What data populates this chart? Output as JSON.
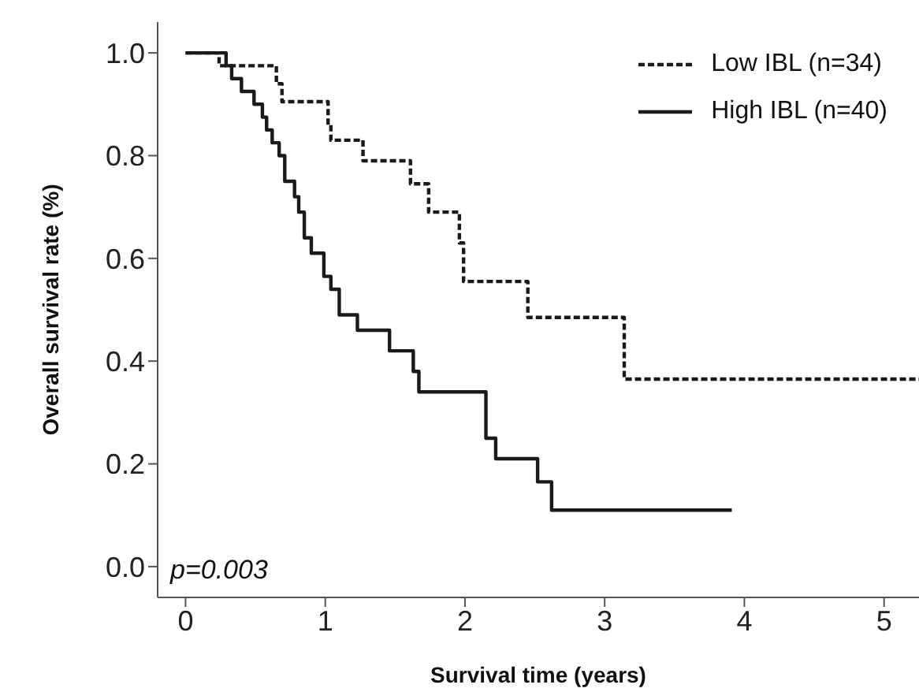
{
  "chart_data": {
    "type": "step",
    "xlabel": "Survival time (years)",
    "ylabel": "Overall survival rate (%)",
    "xlim": [
      -0.2,
      5.25
    ],
    "xticks": [
      0,
      1,
      2,
      3,
      4,
      5
    ],
    "ylim": [
      -0.06,
      1.06
    ],
    "yticks": [
      {
        "value": 0,
        "label": "0.0"
      },
      {
        "value": 0.2,
        "label": "0.2"
      },
      {
        "value": 0.4,
        "label": "0.4"
      },
      {
        "value": 0.6,
        "label": "0.6"
      },
      {
        "value": 0.8,
        "label": "0.8"
      },
      {
        "value": 1,
        "label": "1.0"
      }
    ],
    "grid": false,
    "legend": "top right",
    "marker": "none",
    "annotations": [
      "p=0.003"
    ],
    "series": [
      {
        "name": "Low IBL (n=34)",
        "color": "#1a1a1a",
        "line_style": "dashed",
        "x": [
          0,
          0.24,
          0.65,
          0.69,
          1.02,
          1.04,
          1.27,
          1.61,
          1.74,
          1.96,
          1.99,
          2.45,
          3.14,
          5.25
        ],
        "values": [
          1.0,
          0.975,
          0.94,
          0.905,
          0.86,
          0.83,
          0.79,
          0.745,
          0.69,
          0.63,
          0.555,
          0.485,
          0.365,
          0.365
        ]
      },
      {
        "name": "High IBL (n=40)",
        "color": "#1a1a1a",
        "line_style": "solid",
        "x": [
          0,
          0.29,
          0.33,
          0.4,
          0.49,
          0.55,
          0.58,
          0.62,
          0.67,
          0.71,
          0.78,
          0.81,
          0.85,
          0.9,
          0.99,
          1.04,
          1.1,
          1.23,
          1.46,
          1.63,
          1.67,
          2.15,
          2.22,
          2.52,
          2.62,
          3.91
        ],
        "values": [
          1.0,
          0.975,
          0.95,
          0.925,
          0.9,
          0.875,
          0.85,
          0.825,
          0.8,
          0.75,
          0.72,
          0.69,
          0.64,
          0.61,
          0.565,
          0.54,
          0.49,
          0.46,
          0.42,
          0.38,
          0.34,
          0.25,
          0.21,
          0.165,
          0.11,
          0.11
        ]
      }
    ]
  }
}
